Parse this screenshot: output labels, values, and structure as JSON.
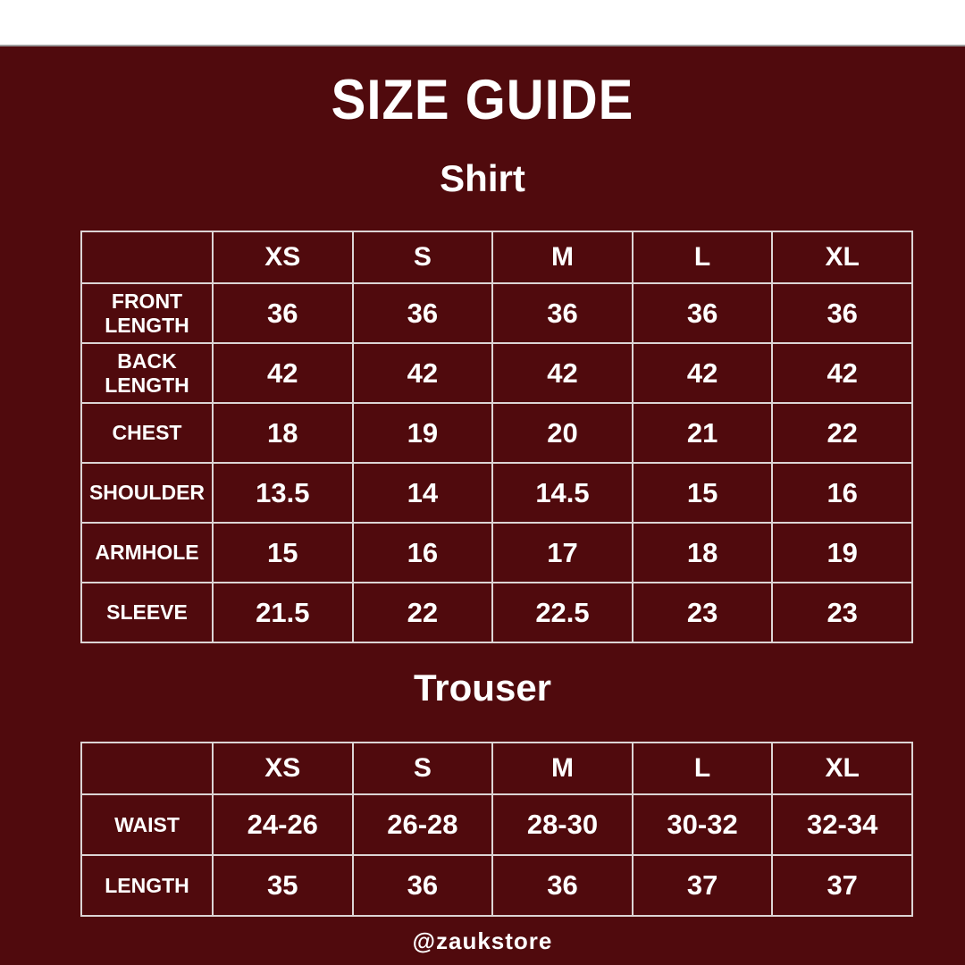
{
  "page": {
    "title": "SIZE GUIDE",
    "footer_handle": "@zaukstore"
  },
  "colors": {
    "background": "#500A0D",
    "top_strip": "#FFFFFF",
    "text": "#FFFFFF",
    "table_border": "#DCD4D4"
  },
  "shirt": {
    "heading": "Shirt",
    "columns": [
      "",
      "XS",
      "S",
      "M",
      "L",
      "XL"
    ],
    "rows": [
      {
        "label": "FRONT LENGTH",
        "values": [
          "36",
          "36",
          "36",
          "36",
          "36"
        ]
      },
      {
        "label": "BACK LENGTH",
        "values": [
          "42",
          "42",
          "42",
          "42",
          "42"
        ]
      },
      {
        "label": "CHEST",
        "values": [
          "18",
          "19",
          "20",
          "21",
          "22"
        ]
      },
      {
        "label": "SHOULDER",
        "values": [
          "13.5",
          "14",
          "14.5",
          "15",
          "16"
        ]
      },
      {
        "label": "ARMHOLE",
        "values": [
          "15",
          "16",
          "17",
          "18",
          "19"
        ]
      },
      {
        "label": "SLEEVE",
        "values": [
          "21.5",
          "22",
          "22.5",
          "23",
          "23"
        ]
      }
    ]
  },
  "trouser": {
    "heading": "Trouser",
    "columns": [
      "",
      "XS",
      "S",
      "M",
      "L",
      "XL"
    ],
    "rows": [
      {
        "label": "WAIST",
        "values": [
          "24-26",
          "26-28",
          "28-30",
          "30-32",
          "32-34"
        ]
      },
      {
        "label": "LENGTH",
        "values": [
          "35",
          "36",
          "36",
          "37",
          "37"
        ]
      }
    ]
  }
}
